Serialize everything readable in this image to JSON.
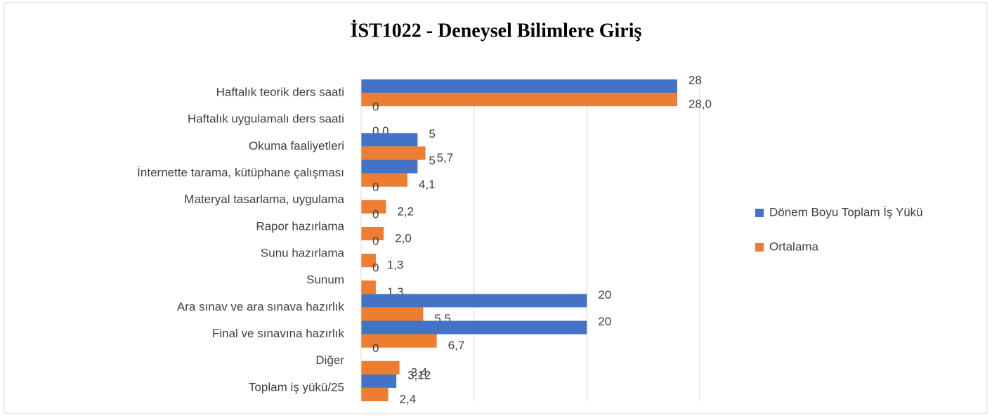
{
  "chart_data": {
    "type": "barh",
    "title": "İST1022 - Deneysel Bilimlere Giriş",
    "categories": [
      "Haftalık teorik ders saati",
      "Haftalık uygulamalı ders saati",
      "Okuma faaliyetleri",
      "İnternette tarama, kütüphane çalışması",
      "Materyal tasarlama, uygulama",
      "Rapor hazırlama",
      "Sunu hazırlama",
      "Sunum",
      "Ara sınav ve ara sınava hazırlık",
      "Final ve sınavına hazırlık",
      "Diğer",
      "Toplam iş yükü/25"
    ],
    "series": [
      {
        "name": "Dönem Boyu Toplam İş Yükü",
        "color": "#4472c4",
        "values": [
          28,
          0,
          5,
          5,
          0,
          0,
          0,
          0,
          20,
          20,
          0,
          3.12
        ],
        "value_labels": [
          "28",
          "0",
          "5",
          "5",
          "0",
          "0",
          "0",
          "0",
          "20",
          "20",
          "0",
          "3,12"
        ]
      },
      {
        "name": "Ortalama",
        "color": "#ed7d31",
        "values": [
          28.0,
          0.0,
          5.7,
          4.1,
          2.2,
          2.0,
          1.3,
          1.3,
          5.5,
          6.7,
          3.4,
          2.4
        ],
        "value_labels": [
          "28,0",
          "0,0",
          "5,7",
          "4,1",
          "2,2",
          "2,0",
          "1,3",
          "1,3",
          "5,5",
          "6,7",
          "3,4",
          "2,4"
        ]
      }
    ],
    "xlim": [
      0,
      30
    ],
    "xticks": [
      0,
      10,
      20,
      30
    ],
    "grid": true,
    "legend": "right"
  }
}
